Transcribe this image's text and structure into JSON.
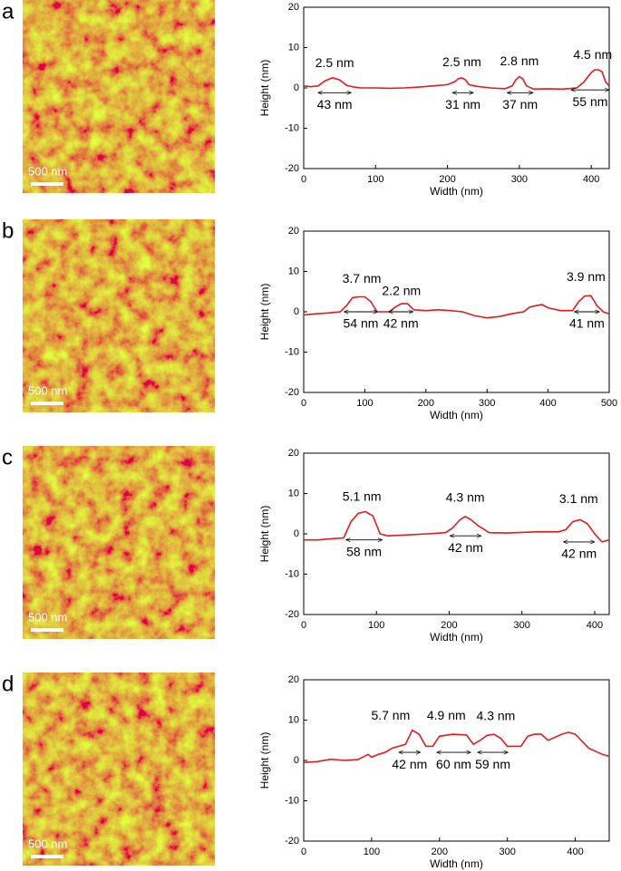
{
  "chart_data": [
    {
      "type": "line",
      "panel_label": "a",
      "scale_bar_label": "500 nm",
      "xlabel": "Width (nm)",
      "ylabel": "Height (nm)",
      "xlim": [
        0,
        425
      ],
      "xticks": [
        0,
        100,
        200,
        300,
        400
      ],
      "ylim": [
        -20,
        20
      ],
      "yticks": [
        -20,
        -10,
        0,
        10,
        20
      ],
      "color": "#e41a1c",
      "x": [
        0,
        10,
        20,
        30,
        40,
        50,
        60,
        70,
        80,
        100,
        120,
        140,
        160,
        180,
        200,
        210,
        215,
        220,
        225,
        230,
        240,
        260,
        280,
        290,
        295,
        300,
        305,
        310,
        320,
        340,
        360,
        380,
        390,
        400,
        405,
        410,
        415,
        420,
        425
      ],
      "values": [
        0.5,
        0.3,
        0.5,
        1.8,
        2.5,
        2,
        0.6,
        0.2,
        0,
        0,
        -0.1,
        0,
        0.2,
        0.5,
        0.8,
        1.5,
        2.3,
        2.5,
        2,
        0.8,
        0.4,
        0,
        -0.2,
        0.5,
        2,
        2.8,
        2.2,
        0.5,
        -0.3,
        -0.2,
        -0.3,
        0,
        1.5,
        3.8,
        4.5,
        4.5,
        4,
        1.5,
        0.5
      ],
      "peaks": [
        {
          "height_label": "2.5 nm",
          "width_label": "43 nm"
        },
        {
          "height_label": "2.5 nm",
          "width_label": "31 nm"
        },
        {
          "height_label": "2.8 nm",
          "width_label": "37 nm"
        },
        {
          "height_label": "4.5 nm",
          "width_label": "55 nm"
        }
      ]
    },
    {
      "type": "line",
      "panel_label": "b",
      "scale_bar_label": "500 nm",
      "xlabel": "Width (nm)",
      "ylabel": "Height (nm)",
      "xlim": [
        0,
        500
      ],
      "xticks": [
        0,
        100,
        200,
        300,
        400,
        500
      ],
      "ylim": [
        -20,
        20
      ],
      "yticks": [
        -20,
        -10,
        0,
        10,
        20
      ],
      "color": "#e41a1c",
      "x": [
        0,
        20,
        40,
        60,
        70,
        80,
        90,
        100,
        110,
        120,
        140,
        150,
        160,
        170,
        180,
        200,
        220,
        240,
        260,
        280,
        300,
        320,
        340,
        360,
        370,
        380,
        390,
        400,
        420,
        440,
        450,
        460,
        470,
        480,
        490,
        500
      ],
      "values": [
        -0.8,
        -0.5,
        -0.3,
        0,
        1.5,
        3.5,
        3.7,
        3.7,
        2.5,
        0,
        0,
        1.2,
        2,
        2,
        0.5,
        0.3,
        0.5,
        0.3,
        0,
        -1,
        -1.5,
        -1.2,
        -0.5,
        0,
        1.2,
        1.5,
        1.8,
        1,
        0.3,
        0.3,
        2.5,
        3.9,
        4,
        1.5,
        0,
        -0.5
      ],
      "peaks": [
        {
          "height_label": "3.7 nm",
          "width_label": "54 nm"
        },
        {
          "height_label": "2.2 nm",
          "width_label": "42 nm"
        },
        {
          "height_label": "3.9 nm",
          "width_label": "41 nm"
        }
      ]
    },
    {
      "type": "line",
      "panel_label": "c",
      "scale_bar_label": "500 nm",
      "xlabel": "Width (nm)",
      "ylabel": "Height (nm)",
      "xlim": [
        0,
        420
      ],
      "xticks": [
        0,
        100,
        200,
        300,
        400
      ],
      "ylim": [
        -20,
        20
      ],
      "yticks": [
        -20,
        -10,
        0,
        10,
        20
      ],
      "color": "#e41a1c",
      "x": [
        0,
        20,
        40,
        55,
        65,
        75,
        85,
        95,
        105,
        115,
        140,
        170,
        195,
        205,
        215,
        222,
        230,
        240,
        255,
        280,
        320,
        350,
        360,
        370,
        380,
        390,
        400,
        410,
        420
      ],
      "values": [
        -1.5,
        -1.5,
        -1.2,
        -1,
        3,
        5.1,
        5.5,
        4.5,
        0,
        -0.5,
        -0.3,
        0,
        0.3,
        1.5,
        3.5,
        4.3,
        3.5,
        2,
        0.3,
        0.2,
        0.5,
        0.5,
        1,
        3,
        3.5,
        2.5,
        0,
        -2,
        -1.5
      ],
      "peaks": [
        {
          "height_label": "5.1 nm",
          "width_label": "58 nm"
        },
        {
          "height_label": "4.3 nm",
          "width_label": "42 nm"
        },
        {
          "height_label": "3.1 nm",
          "width_label": "42 nm"
        }
      ]
    },
    {
      "type": "line",
      "panel_label": "d",
      "scale_bar_label": "500 nm",
      "xlabel": "Width (nm)",
      "ylabel": "Height (nm)",
      "xlim": [
        0,
        450
      ],
      "xticks": [
        0,
        100,
        200,
        300,
        400
      ],
      "ylim": [
        -20,
        20
      ],
      "yticks": [
        -20,
        -10,
        0,
        10,
        20
      ],
      "color": "#e41a1c",
      "x": [
        0,
        20,
        40,
        60,
        80,
        95,
        100,
        110,
        120,
        130,
        140,
        150,
        160,
        170,
        180,
        190,
        200,
        220,
        240,
        250,
        260,
        270,
        280,
        290,
        300,
        320,
        330,
        340,
        350,
        360,
        380,
        390,
        400,
        420,
        440,
        450
      ],
      "values": [
        -0.5,
        -0.3,
        0.3,
        0,
        0.2,
        1.5,
        0.8,
        1.5,
        2,
        3,
        3.5,
        4,
        7.5,
        6.5,
        3.5,
        3.5,
        6,
        6.5,
        6.3,
        4,
        5,
        6.2,
        6.5,
        5.5,
        3.5,
        3.5,
        6,
        6.5,
        6.5,
        5,
        6.5,
        7,
        6.5,
        3,
        1.5,
        1
      ],
      "peaks": [
        {
          "height_label": "5.7 nm",
          "width_label": "42 nm"
        },
        {
          "height_label": "4.9 nm",
          "width_label": "60 nm"
        },
        {
          "height_label": "4.3 nm",
          "width_label": "59 nm"
        }
      ]
    }
  ]
}
